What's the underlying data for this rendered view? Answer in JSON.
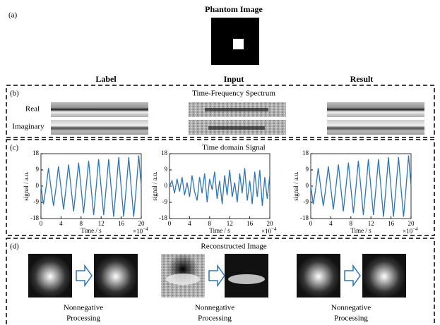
{
  "header": {
    "panel": "(a)",
    "title": "Phantom Image"
  },
  "columns": [
    "Label",
    "Input",
    "Result"
  ],
  "spectrum": {
    "panel": "(b)",
    "title": "Time-Frequency Spectrum",
    "rows": [
      "Real",
      "Imaginary"
    ]
  },
  "signal": {
    "panel": "(c)",
    "title": "Time domain Signal"
  },
  "chart_data": [
    {
      "type": "line",
      "xlabel": "Time / s",
      "ylabel": "signal / a.u.",
      "x_offset_text": {
        "base": "×10",
        "exponent": "−4"
      },
      "x": [
        0,
        0.5,
        1,
        1.5,
        2,
        2.5,
        3,
        3.5,
        4,
        4.5,
        5,
        5.5,
        6,
        6.5,
        7,
        7.5,
        8,
        8.5,
        9,
        9.5,
        10,
        10.5,
        11,
        11.5,
        12,
        12.5,
        13,
        13.5,
        14,
        14.5,
        15,
        15.5,
        16,
        16.5,
        17,
        17.5,
        18,
        18.5,
        19,
        19.5,
        20
      ],
      "series": [
        {
          "name": "Label",
          "color": "#2e75b6",
          "values": [
            0,
            -10,
            -1,
            10,
            -1,
            -11,
            -1,
            11,
            -1,
            -13,
            -1,
            12,
            -1,
            -14,
            -1,
            13,
            -1,
            -15,
            -1,
            14,
            -1,
            -16,
            -1,
            15,
            -1,
            -16,
            -1,
            15,
            -1,
            -17,
            -1,
            16,
            -1,
            -17,
            -1,
            16,
            -1,
            -17,
            -1,
            17,
            0
          ]
        }
      ],
      "xlim": [
        0,
        20
      ],
      "ylim": [
        -18,
        18
      ],
      "xticks": [
        0,
        4,
        8,
        12,
        16,
        20
      ],
      "yticks": [
        -18,
        -9,
        0,
        9,
        18
      ]
    },
    {
      "type": "line",
      "xlabel": "Time / s",
      "ylabel": "signal / a.u.",
      "x_offset_text": {
        "base": "×10",
        "exponent": "−4"
      },
      "x": [
        0,
        0.5,
        1,
        1.5,
        2,
        2.5,
        3,
        3.5,
        4,
        4.5,
        5,
        5.5,
        6,
        6.5,
        7,
        7.5,
        8,
        8.5,
        9,
        9.5,
        10,
        10.5,
        11,
        11.5,
        12,
        12.5,
        13,
        13.5,
        14,
        14.5,
        15,
        15.5,
        16,
        16.5,
        17,
        17.5,
        18,
        18.5,
        19,
        19.5,
        20
      ],
      "series": [
        {
          "name": "Input",
          "color": "#2e75b6",
          "values": [
            0,
            3,
            -4,
            4,
            -3,
            5,
            -5,
            2,
            -6,
            6,
            -3,
            -8,
            5,
            -4,
            7,
            -9,
            4,
            -2,
            8,
            -7,
            3,
            -10,
            6,
            -5,
            9,
            -6,
            2,
            -9,
            7,
            -4,
            10,
            -8,
            3,
            -10,
            8,
            -6,
            9,
            -11,
            5,
            -7,
            6
          ]
        }
      ],
      "xlim": [
        0,
        20
      ],
      "ylim": [
        -18,
        18
      ],
      "xticks": [
        0,
        4,
        8,
        12,
        16,
        20
      ],
      "yticks": [
        -18,
        -9,
        0,
        9,
        18
      ]
    },
    {
      "type": "line",
      "xlabel": "Time / s",
      "ylabel": "signal / a.u.",
      "x_offset_text": {
        "base": "×10",
        "exponent": "−4"
      },
      "x": [
        0,
        0.5,
        1,
        1.5,
        2,
        2.5,
        3,
        3.5,
        4,
        4.5,
        5,
        5.5,
        6,
        6.5,
        7,
        7.5,
        8,
        8.5,
        9,
        9.5,
        10,
        10.5,
        11,
        11.5,
        12,
        12.5,
        13,
        13.5,
        14,
        14.5,
        15,
        15.5,
        16,
        16.5,
        17,
        17.5,
        18,
        18.5,
        19,
        19.5,
        20
      ],
      "series": [
        {
          "name": "Result",
          "color": "#2e75b6",
          "values": [
            0,
            -10,
            -1,
            10,
            -1,
            -11,
            -1,
            11,
            -1,
            -13,
            -1,
            12,
            -1,
            -14,
            -1,
            13,
            -1,
            -15,
            -1,
            14,
            -1,
            -16,
            -1,
            15,
            -1,
            -16,
            -1,
            15,
            -1,
            -17,
            -1,
            16,
            -1,
            -17,
            -1,
            16,
            -1,
            -17,
            -1,
            17,
            0
          ]
        }
      ],
      "xlim": [
        0,
        20
      ],
      "ylim": [
        -18,
        18
      ],
      "xticks": [
        0,
        4,
        8,
        12,
        16,
        20
      ],
      "yticks": [
        -18,
        -9,
        0,
        9,
        18
      ]
    }
  ],
  "reconstruction": {
    "panel": "(d)",
    "title": "Reconstructed Image",
    "captions": [
      [
        "Nonnegative",
        "Processing"
      ],
      [
        "Nonnegative",
        "Processing"
      ],
      [
        "Nonnegative",
        "Processing"
      ]
    ]
  }
}
